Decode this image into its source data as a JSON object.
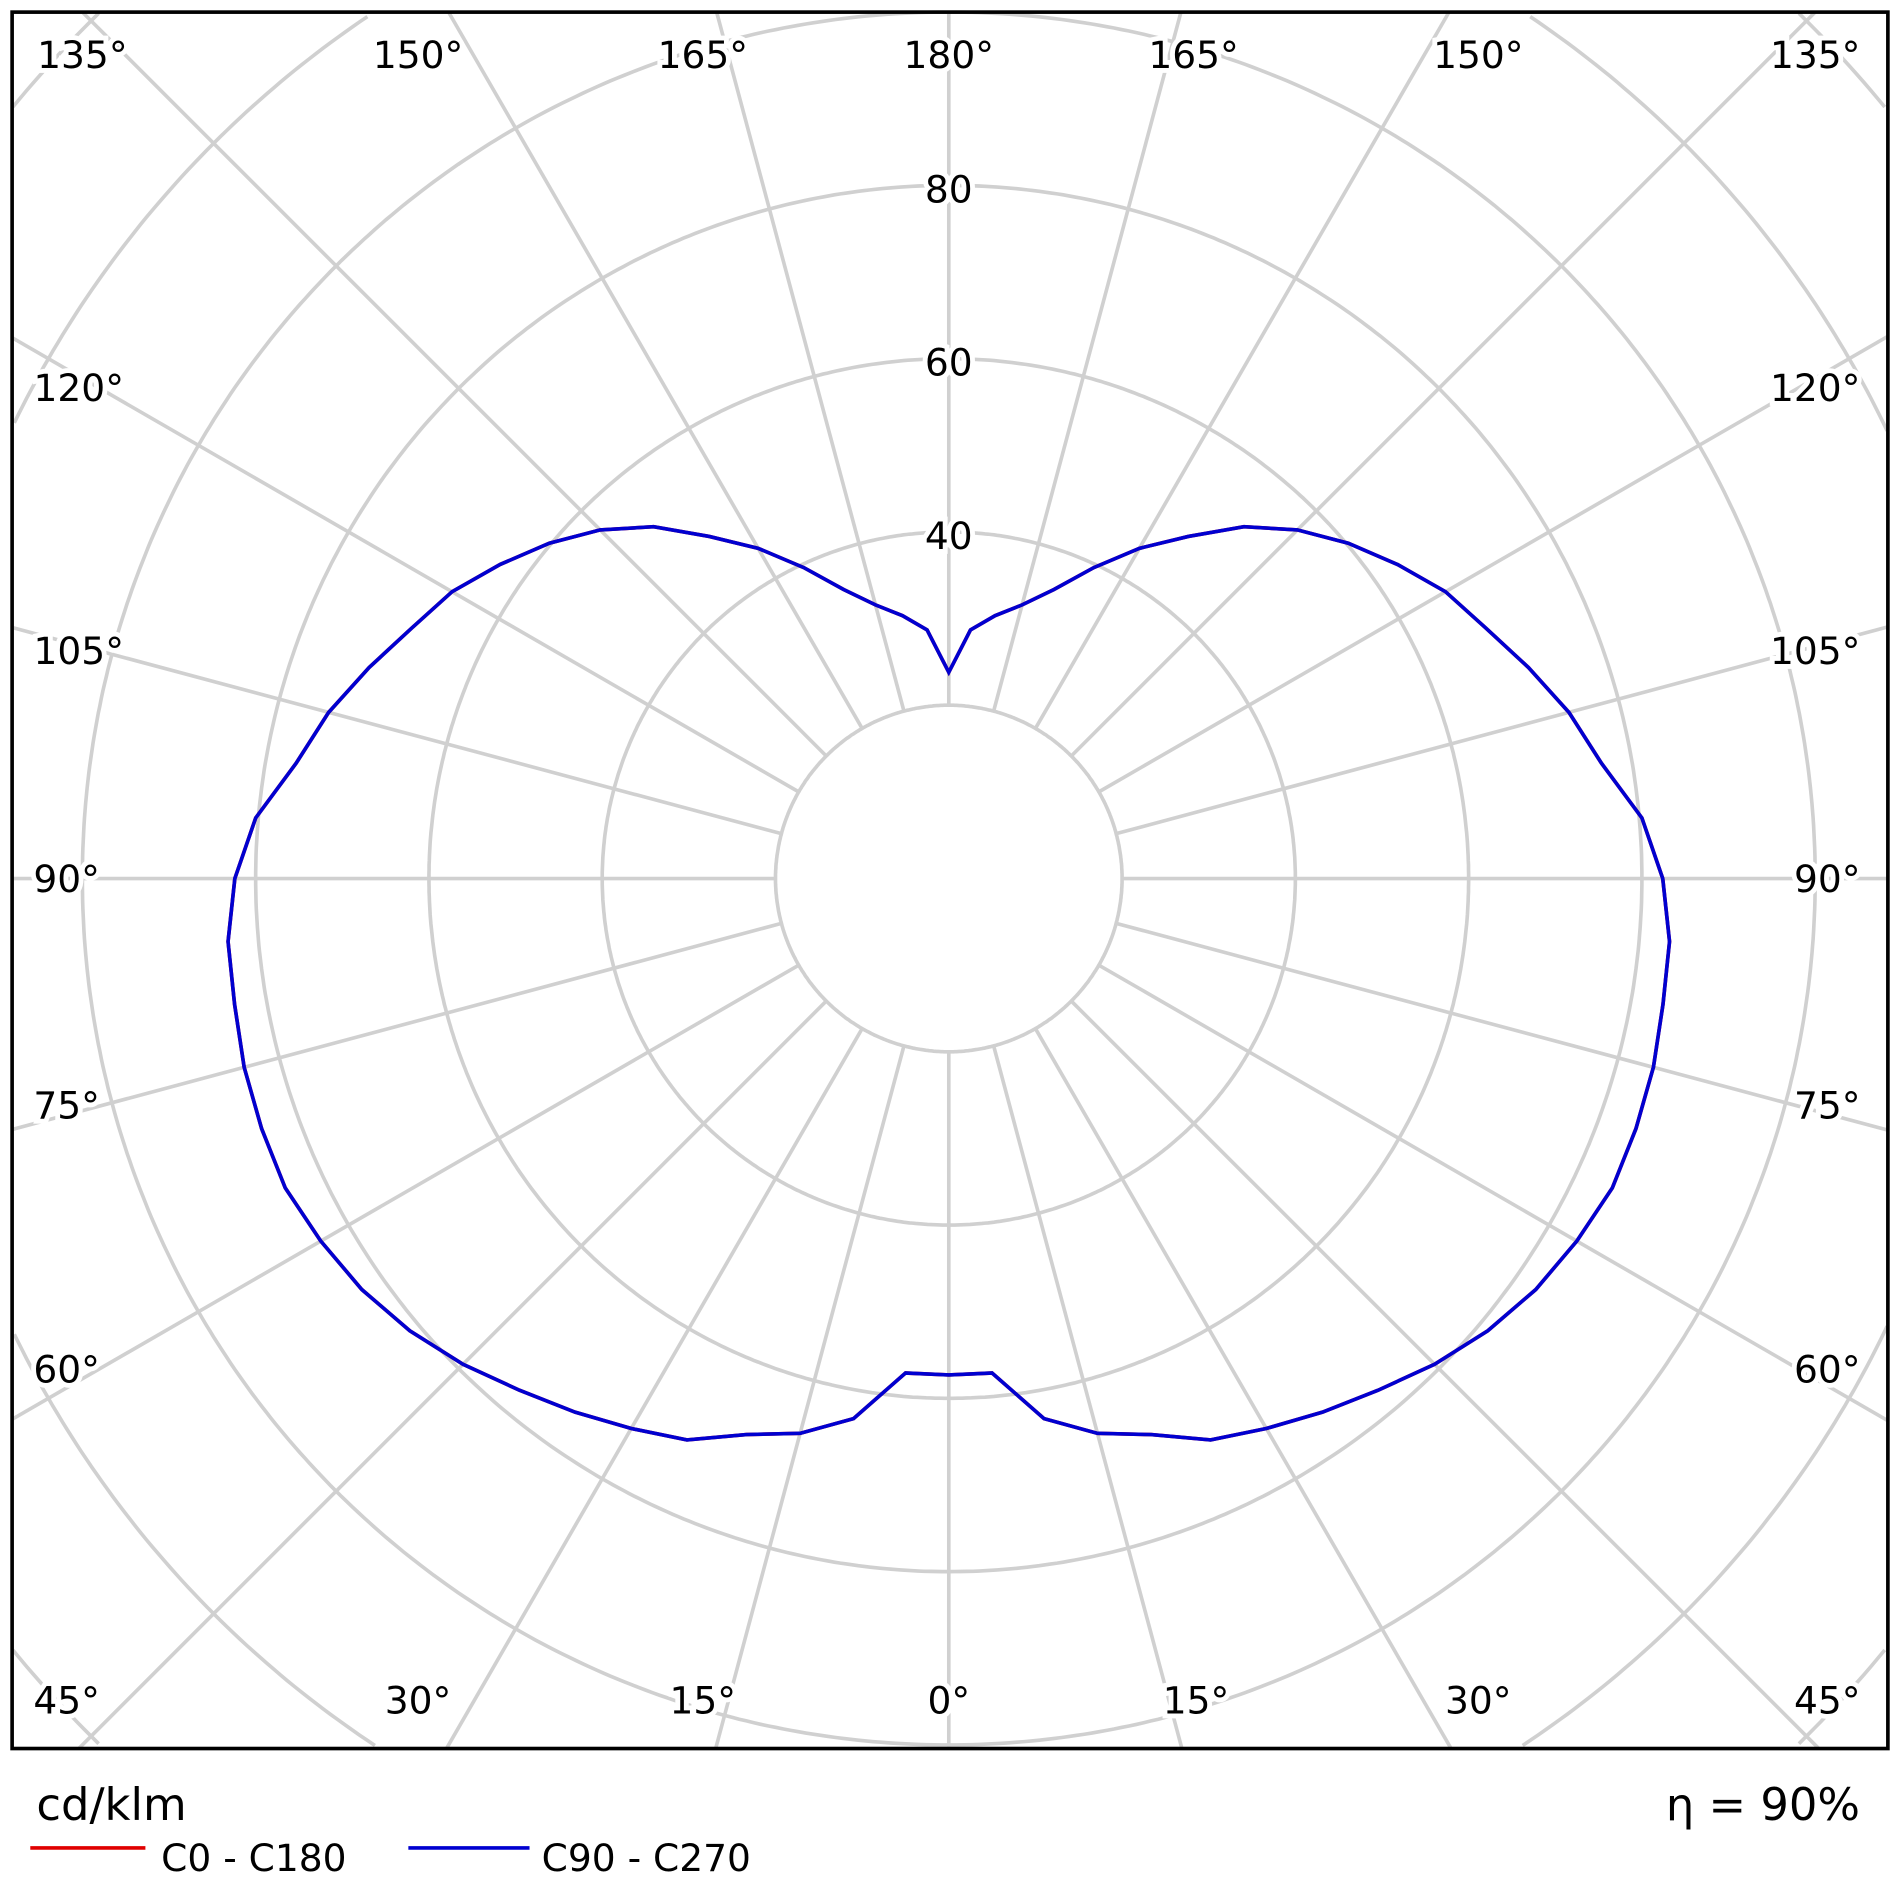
{
  "chart_data": {
    "type": "polar-line",
    "unit_label": "cd/klm",
    "efficiency_label": "η = 90%",
    "radial_ticks": [
      "40",
      "60",
      "80"
    ],
    "radial_range": [
      0,
      120
    ],
    "grid": true,
    "angle_labels_left": [
      "135°",
      "150°",
      "165°",
      "180°",
      "120°",
      "105°",
      "90°",
      "75°",
      "60°",
      "45°",
      "30°",
      "15°",
      "0°"
    ],
    "angle_labels_right": [
      "165°",
      "150°",
      "135°",
      "120°",
      "105°",
      "90°",
      "75°",
      "60°",
      "15°",
      "30°",
      "45°"
    ],
    "gamma": [
      0,
      5,
      10,
      15,
      20,
      25,
      30,
      35,
      40,
      45,
      50,
      55,
      60,
      65,
      70,
      75,
      80,
      85,
      90,
      95,
      100,
      105,
      110,
      115,
      120,
      125,
      130,
      135,
      140,
      145,
      150,
      155,
      160,
      165,
      170,
      175,
      180
    ],
    "series": [
      {
        "name": "C0 - C180",
        "color": "#e00000",
        "values": [
          57.3,
          57.3,
          63.3,
          66.3,
          68.3,
          71.5,
          73.3,
          75.2,
          77.1,
          79.3,
          81.2,
          82.7,
          83.7,
          84.5,
          84.4,
          84.2,
          83.7,
          83.5,
          82.4,
          80.3,
          76.5,
          74.1,
          71.2,
          68.4,
          66.2,
          63.2,
          60.2,
          56.9,
          53,
          48.2,
          44,
          39.6,
          35.5,
          32.7,
          30.8,
          28.8,
          23.8
        ]
      },
      {
        "name": "C90 - C270",
        "color": "#0000d0",
        "values": [
          57.3,
          57.3,
          63.3,
          66.3,
          68.3,
          71.5,
          73.3,
          75.2,
          77.1,
          79.3,
          81.2,
          82.7,
          83.7,
          84.5,
          84.4,
          84.2,
          83.7,
          83.5,
          82.4,
          80.3,
          76.5,
          74.1,
          71.2,
          68.4,
          66.2,
          63.2,
          60.2,
          56.9,
          53,
          48.2,
          44,
          39.6,
          35.5,
          32.7,
          30.8,
          28.8,
          23.8
        ]
      }
    ]
  }
}
